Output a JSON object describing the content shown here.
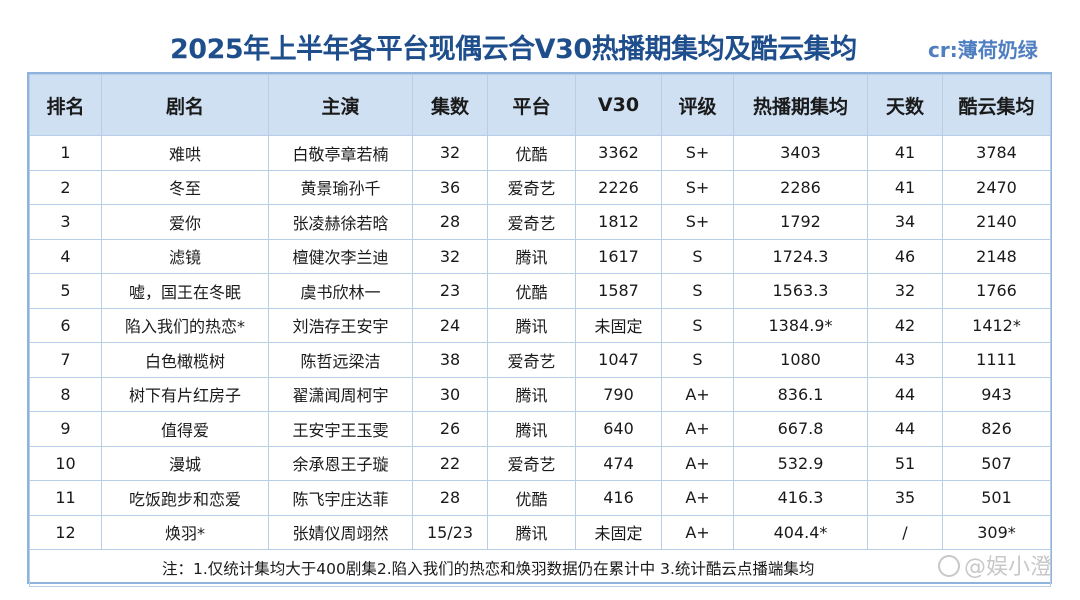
{
  "title": "2025年上半年各平台现偶云合V30热播期集均及酷云集均",
  "credit": "cr:薄荷奶绿",
  "headers": [
    "排名",
    "剧名",
    "主演",
    "集数",
    "平台",
    "V30",
    "评级",
    "热播期集均",
    "天数",
    "酷云集均"
  ],
  "rows": [
    [
      "1",
      "难哄",
      "白敬亭章若楠",
      "32",
      "优酷",
      "3362",
      "S+",
      "3403",
      "41",
      "3784"
    ],
    [
      "2",
      "冬至",
      "黄景瑜孙千",
      "36",
      "爱奇艺",
      "2226",
      "S+",
      "2286",
      "41",
      "2470"
    ],
    [
      "3",
      "爱你",
      "张凌赫徐若晗",
      "28",
      "爱奇艺",
      "1812",
      "S+",
      "1792",
      "34",
      "2140"
    ],
    [
      "4",
      "滤镜",
      "檀健次李兰迪",
      "32",
      "腾讯",
      "1617",
      "S",
      "1724.3",
      "46",
      "2148"
    ],
    [
      "5",
      "嘘，国王在冬眠",
      "虞书欣林一",
      "23",
      "优酷",
      "1587",
      "S",
      "1563.3",
      "32",
      "1766"
    ],
    [
      "6",
      "陷入我们的热恋*",
      "刘浩存王安宇",
      "24",
      "腾讯",
      "未固定",
      "S",
      "1384.9*",
      "42",
      "1412*"
    ],
    [
      "7",
      "白色橄榄树",
      "陈哲远梁洁",
      "38",
      "爱奇艺",
      "1047",
      "S",
      "1080",
      "43",
      "1111"
    ],
    [
      "8",
      "树下有片红房子",
      "翟潇闻周柯宇",
      "30",
      "腾讯",
      "790",
      "A+",
      "836.1",
      "44",
      "943"
    ],
    [
      "9",
      "值得爱",
      "王安宇王玉雯",
      "26",
      "腾讯",
      "640",
      "A+",
      "667.8",
      "44",
      "826"
    ],
    [
      "10",
      "漫城",
      "余承恩王子璇",
      "22",
      "爱奇艺",
      "474",
      "A+",
      "532.9",
      "51",
      "507"
    ],
    [
      "11",
      "吃饭跑步和恋爱",
      "陈飞宇庄达菲",
      "28",
      "优酷",
      "416",
      "A+",
      "416.3",
      "35",
      "501"
    ],
    [
      "12",
      "焕羽*",
      "张婧仪周翊然",
      "15/23",
      "腾讯",
      "未固定",
      "A+",
      "404.4*",
      "/",
      "309*"
    ]
  ],
  "note": "注：1.仅统计集均大于400剧集2.陷入我们的热恋和焕羽数据仍在累计中 3.统计酷云点播端集均",
  "watermark": "@娱小澄"
}
